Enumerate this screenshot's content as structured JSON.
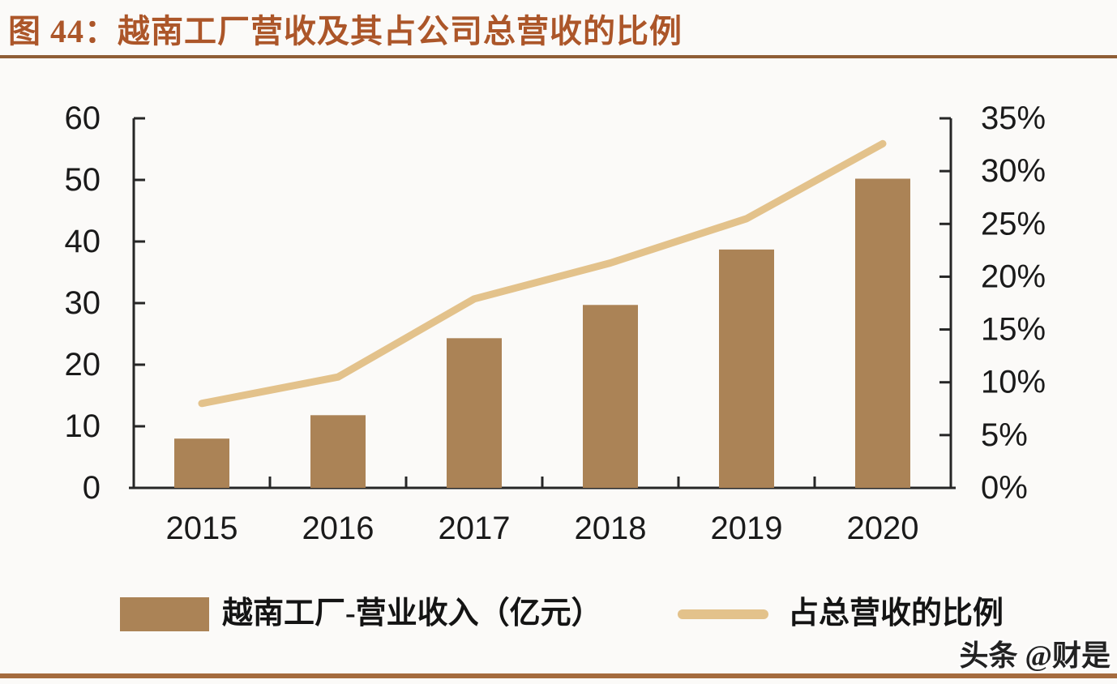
{
  "title": "图 44：越南工厂营收及其占公司总营收的比例",
  "watermark": "头条 @财是",
  "chart_data": {
    "type": "bar+line",
    "title": "越南工厂营收及其占公司总营收的比例",
    "categories": [
      "2015",
      "2016",
      "2017",
      "2018",
      "2019",
      "2020"
    ],
    "series": [
      {
        "name": "越南工厂-营业收入（亿元）",
        "type": "bar",
        "axis": "left",
        "color": "#AB8356",
        "values": [
          8.0,
          11.8,
          24.3,
          29.7,
          38.7,
          50.2
        ]
      },
      {
        "name": "占总营收的比例",
        "type": "line",
        "axis": "right",
        "color": "#E3C28B",
        "unit": "%",
        "values": [
          8.0,
          10.5,
          17.9,
          21.3,
          25.5,
          32.6
        ]
      }
    ],
    "left_axis": {
      "min": 0,
      "max": 60,
      "step": 10,
      "ticks": [
        "0",
        "10",
        "20",
        "30",
        "40",
        "50",
        "60"
      ]
    },
    "right_axis": {
      "min": 0,
      "max": 35,
      "step": 5,
      "ticks": [
        "0%",
        "5%",
        "10%",
        "15%",
        "20%",
        "25%",
        "30%",
        "35%"
      ]
    },
    "legend_position": "bottom",
    "grid": false
  }
}
